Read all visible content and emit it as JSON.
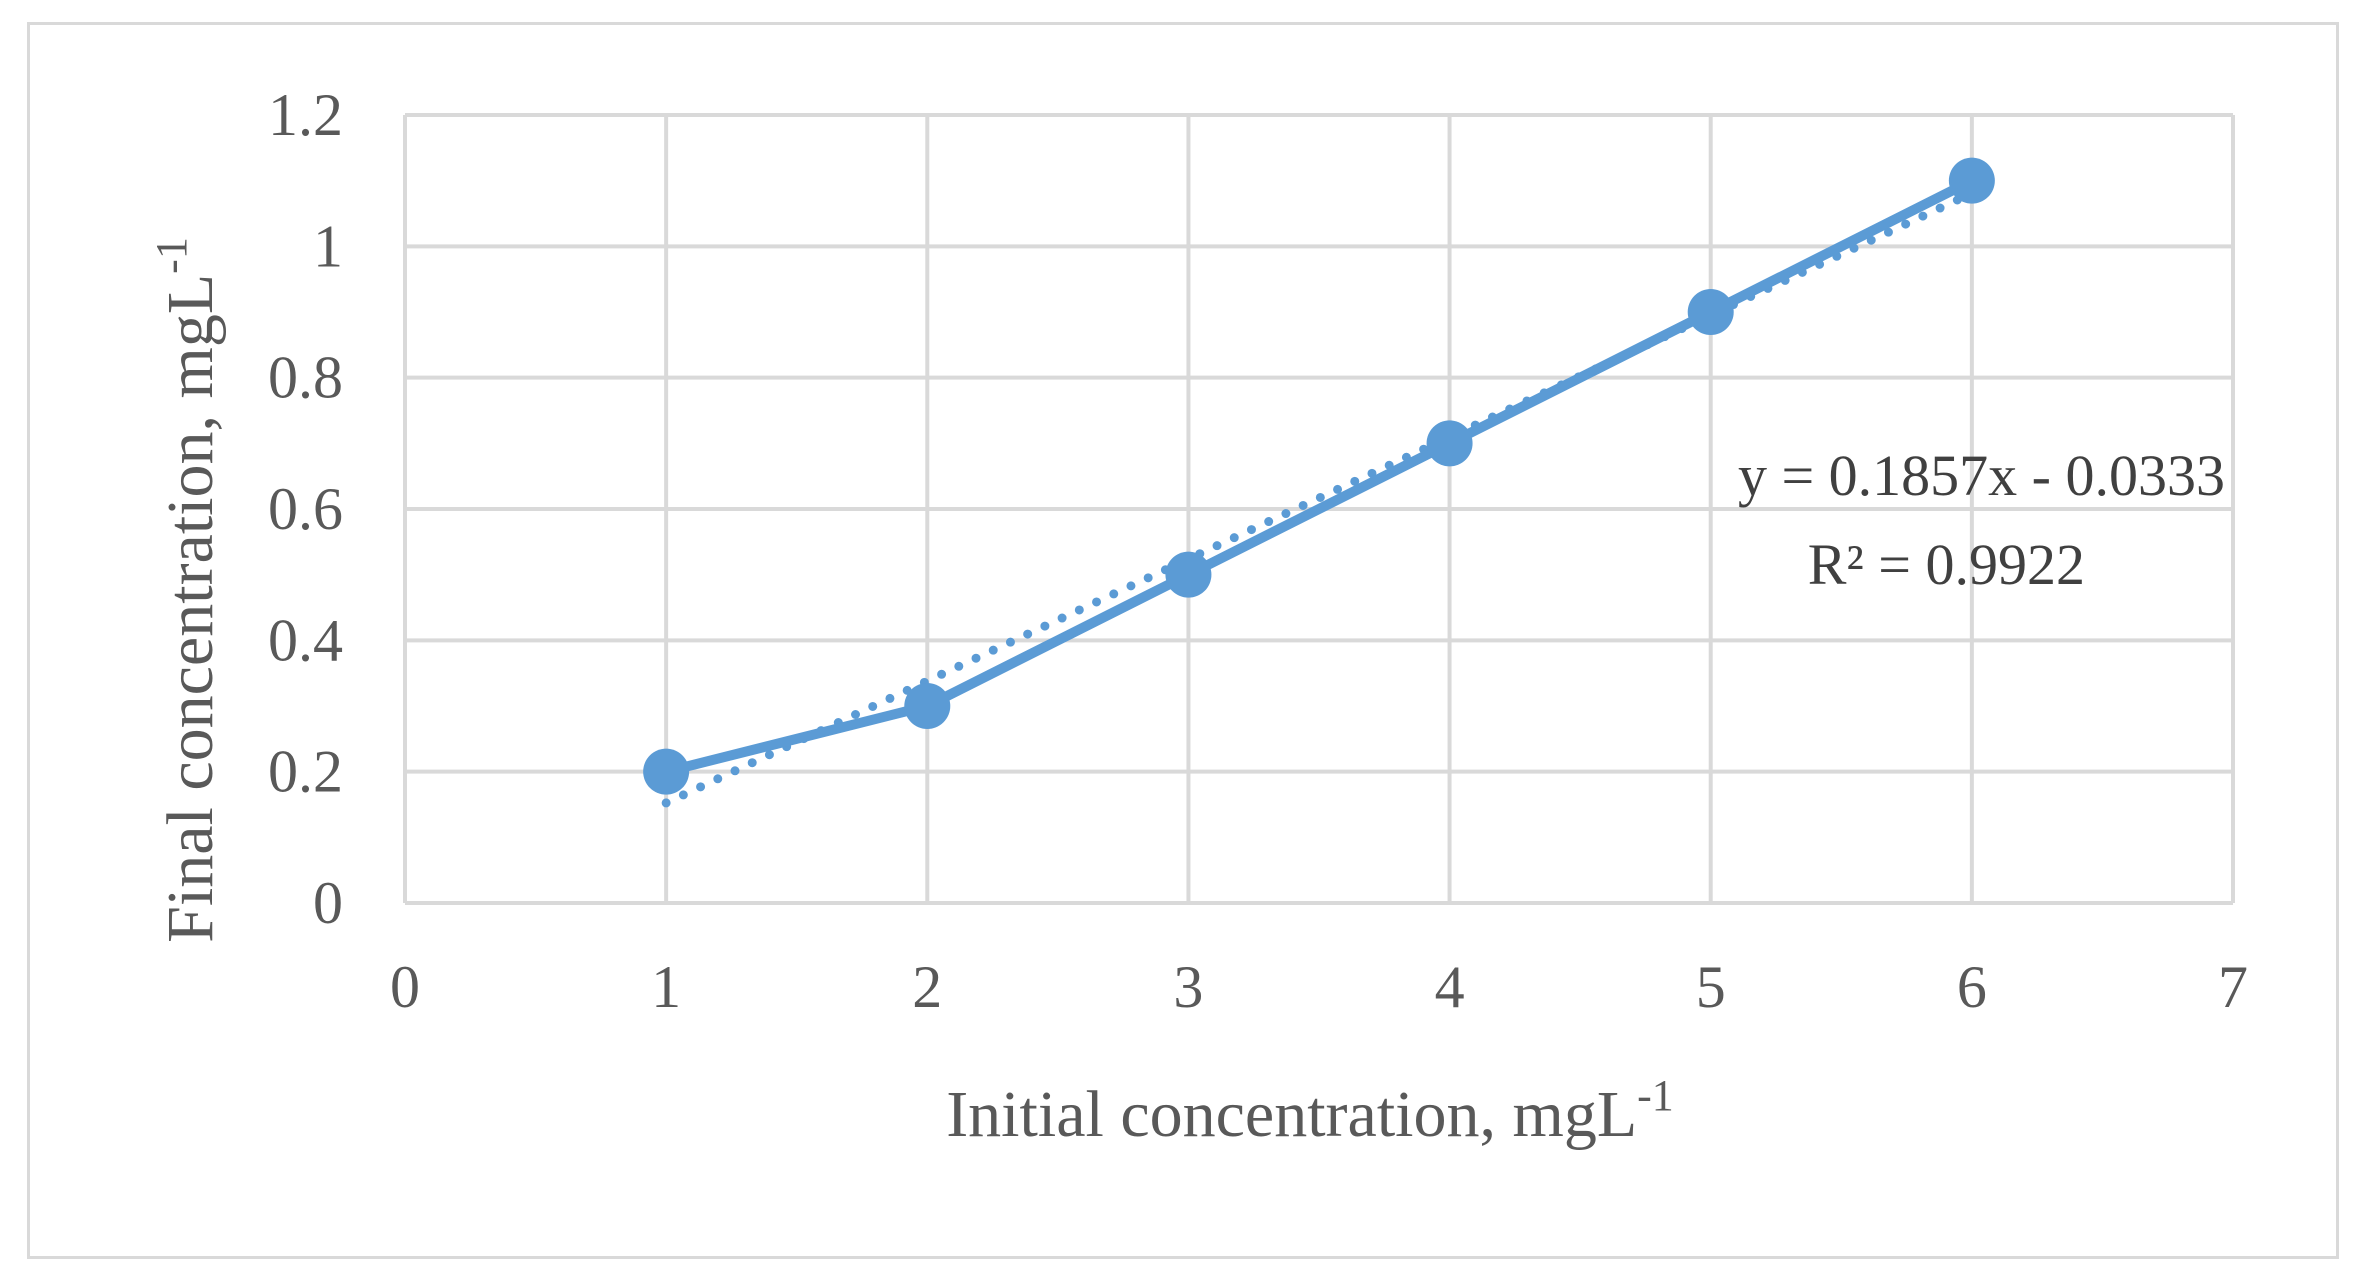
{
  "chart_data": {
    "type": "line",
    "xlabel": "Initial concentration, mgL",
    "xlabel_sup": "-1",
    "ylabel": "Final concentration, mgL",
    "ylabel_sup": "-1",
    "xlim": [
      0,
      7
    ],
    "ylim": [
      0,
      1.2
    ],
    "x_ticks": [
      "0",
      "1",
      "2",
      "3",
      "4",
      "5",
      "6",
      "7"
    ],
    "y_ticks": [
      "0",
      "0.2",
      "0.4",
      "0.6",
      "0.8",
      "1",
      "1.2"
    ],
    "grid": true,
    "legend": "none",
    "series": [
      {
        "x": [
          1,
          2,
          3,
          4,
          5,
          6
        ],
        "values": [
          0.2,
          0.3,
          0.5,
          0.7,
          0.9,
          1.1
        ],
        "color": "#5b9bd5",
        "marker": "circle"
      }
    ],
    "trendline": {
      "type": "linear",
      "slope": 0.1857,
      "intercept": -0.0333,
      "style": "dotted",
      "color": "#5b9bd5",
      "equation": "y = 0.1857x - 0.0333",
      "r_squared": "R² = 0.9922"
    }
  }
}
